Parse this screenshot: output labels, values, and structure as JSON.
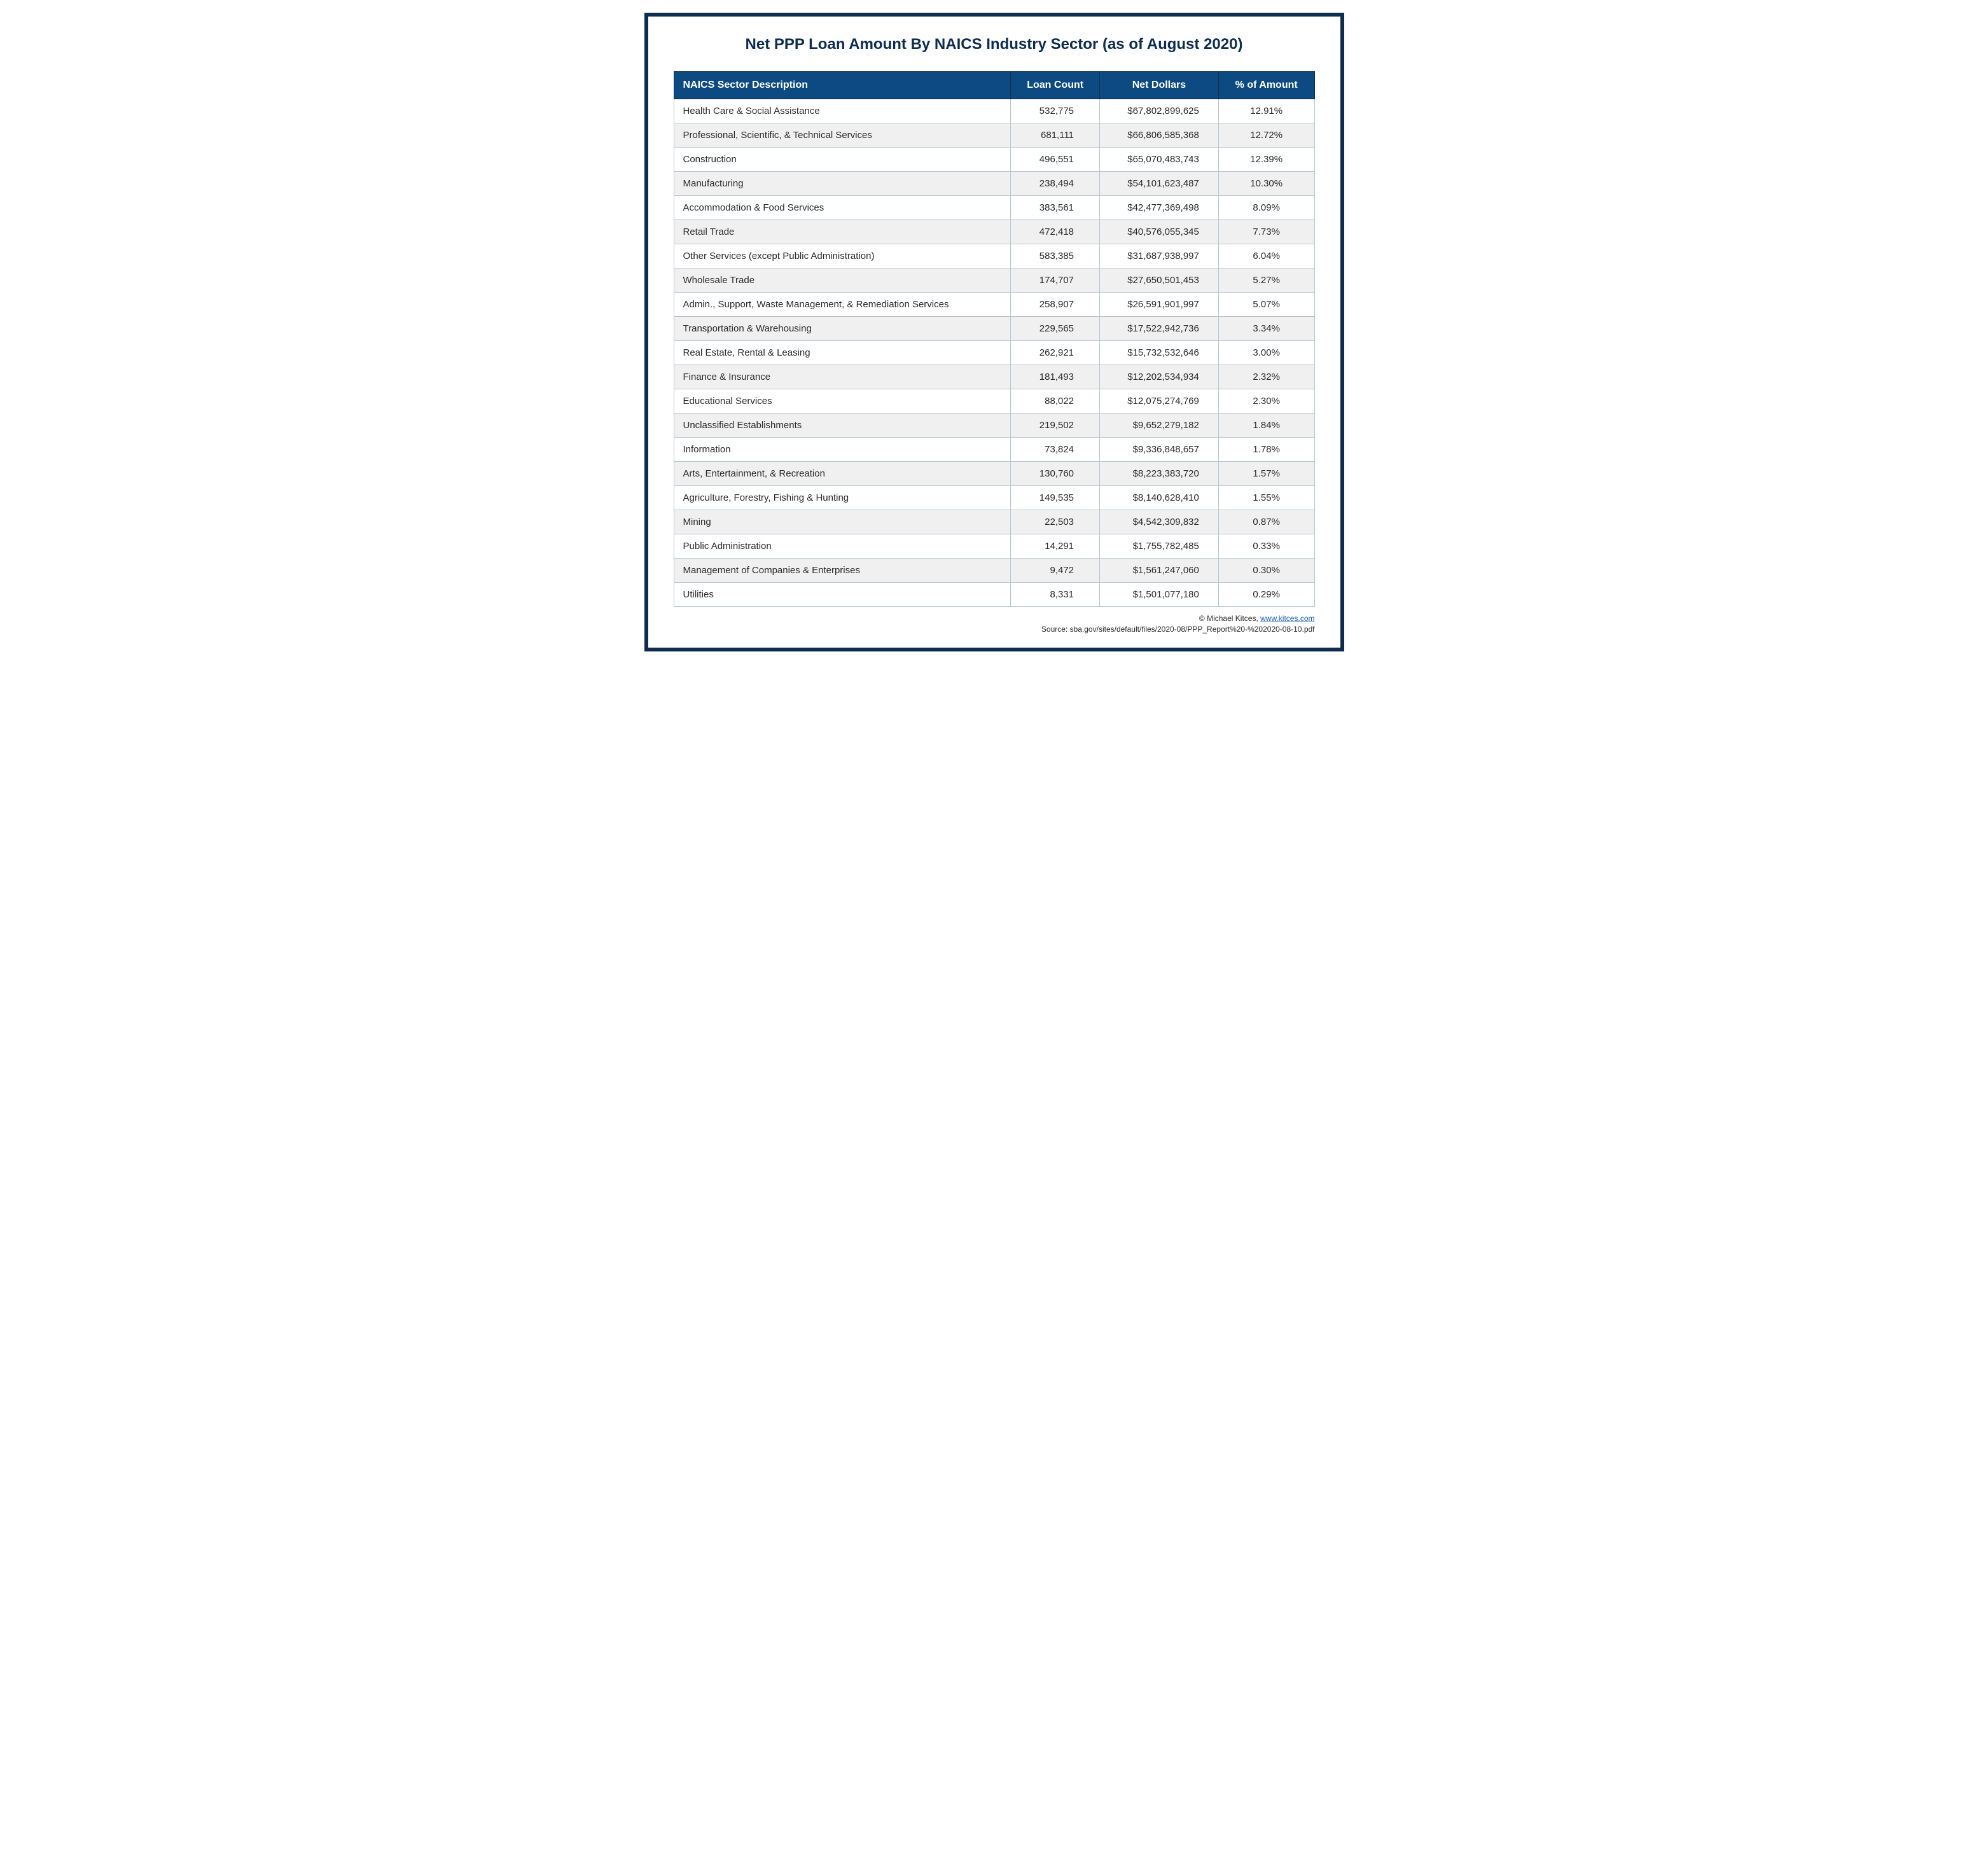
{
  "title": "Net PPP Loan Amount By NAICS Industry Sector (as of August 2020)",
  "table": {
    "type": "table",
    "header_bg": "#0d4a82",
    "header_text_color": "#ffffff",
    "border_color": "#0d2c4f",
    "cell_border_color": "#b8c4d0",
    "row_alt_bg": "#f0f0f0",
    "title_color": "#0d2c4f",
    "title_fontsize": 24,
    "body_fontsize": 15,
    "columns": [
      {
        "key": "desc",
        "label": "NAICS Sector Description",
        "align": "left"
      },
      {
        "key": "loan",
        "label": "Loan Count",
        "align": "right"
      },
      {
        "key": "dollars",
        "label": "Net Dollars",
        "align": "right"
      },
      {
        "key": "pct",
        "label": "% of Amount",
        "align": "center"
      }
    ],
    "rows": [
      {
        "desc": "Health Care & Social Assistance",
        "loan": "532,775",
        "dollars": "$67,802,899,625",
        "pct": "12.91%"
      },
      {
        "desc": "Professional, Scientific, & Technical Services",
        "loan": "681,111",
        "dollars": "$66,806,585,368",
        "pct": "12.72%"
      },
      {
        "desc": "Construction",
        "loan": "496,551",
        "dollars": "$65,070,483,743",
        "pct": "12.39%"
      },
      {
        "desc": "Manufacturing",
        "loan": "238,494",
        "dollars": "$54,101,623,487",
        "pct": "10.30%"
      },
      {
        "desc": "Accommodation & Food Services",
        "loan": "383,561",
        "dollars": "$42,477,369,498",
        "pct": "8.09%"
      },
      {
        "desc": "Retail Trade",
        "loan": "472,418",
        "dollars": "$40,576,055,345",
        "pct": "7.73%"
      },
      {
        "desc": "Other Services (except Public Administration)",
        "loan": "583,385",
        "dollars": "$31,687,938,997",
        "pct": "6.04%"
      },
      {
        "desc": "Wholesale Trade",
        "loan": "174,707",
        "dollars": "$27,650,501,453",
        "pct": "5.27%"
      },
      {
        "desc": "Admin., Support, Waste Management, & Remediation Services",
        "loan": "258,907",
        "dollars": "$26,591,901,997",
        "pct": "5.07%"
      },
      {
        "desc": "Transportation & Warehousing",
        "loan": "229,565",
        "dollars": "$17,522,942,736",
        "pct": "3.34%"
      },
      {
        "desc": "Real Estate, Rental & Leasing",
        "loan": "262,921",
        "dollars": "$15,732,532,646",
        "pct": "3.00%"
      },
      {
        "desc": "Finance & Insurance",
        "loan": "181,493",
        "dollars": "$12,202,534,934",
        "pct": "2.32%"
      },
      {
        "desc": "Educational Services",
        "loan": "88,022",
        "dollars": "$12,075,274,769",
        "pct": "2.30%"
      },
      {
        "desc": "Unclassified Establishments",
        "loan": "219,502",
        "dollars": "$9,652,279,182",
        "pct": "1.84%"
      },
      {
        "desc": "Information",
        "loan": "73,824",
        "dollars": "$9,336,848,657",
        "pct": "1.78%"
      },
      {
        "desc": "Arts, Entertainment, & Recreation",
        "loan": "130,760",
        "dollars": "$8,223,383,720",
        "pct": "1.57%"
      },
      {
        "desc": "Agriculture, Forestry, Fishing & Hunting",
        "loan": "149,535",
        "dollars": "$8,140,628,410",
        "pct": "1.55%"
      },
      {
        "desc": "Mining",
        "loan": "22,503",
        "dollars": "$4,542,309,832",
        "pct": "0.87%"
      },
      {
        "desc": "Public Administration",
        "loan": "14,291",
        "dollars": "$1,755,782,485",
        "pct": "0.33%"
      },
      {
        "desc": "Management of Companies & Enterprises",
        "loan": "9,472",
        "dollars": "$1,561,247,060",
        "pct": "0.30%"
      },
      {
        "desc": "Utilities",
        "loan": "8,331",
        "dollars": "$1,501,077,180",
        "pct": "0.29%"
      }
    ]
  },
  "footer": {
    "credit_prefix": "© Michael Kitces, ",
    "credit_link_text": "www.kitces.com",
    "source": "Source: sba.gov/sites/default/files/2020-08/PPP_Report%20-%202020-08-10.pdf"
  }
}
